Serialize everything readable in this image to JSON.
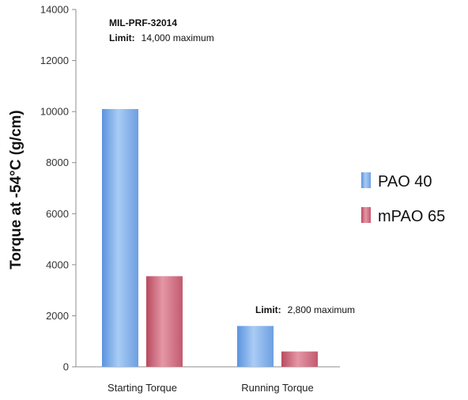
{
  "chart_data": {
    "type": "bar",
    "categories": [
      "Starting Torque",
      "Running Torque"
    ],
    "series": [
      {
        "name": "PAO 40",
        "values": [
          10100,
          1600
        ],
        "color": "#7fb0e8"
      },
      {
        "name": "mPAO 65",
        "values": [
          3550,
          600
        ],
        "color": "#cf6a7e"
      }
    ],
    "ylabel": "Torque at -54°C (g/cm)",
    "xlabel": "",
    "ylim": [
      0,
      14000
    ],
    "yticks": [
      0,
      2000,
      4000,
      6000,
      8000,
      10000,
      12000,
      14000
    ],
    "grid": false,
    "legend": "right",
    "annotations": {
      "spec_title": "MIL-PRF-32014",
      "start_limit_label": "Limit:",
      "start_limit_value": "14,000 maximum",
      "run_limit_label": "Limit:",
      "run_limit_value": "2,800 maximum"
    }
  }
}
